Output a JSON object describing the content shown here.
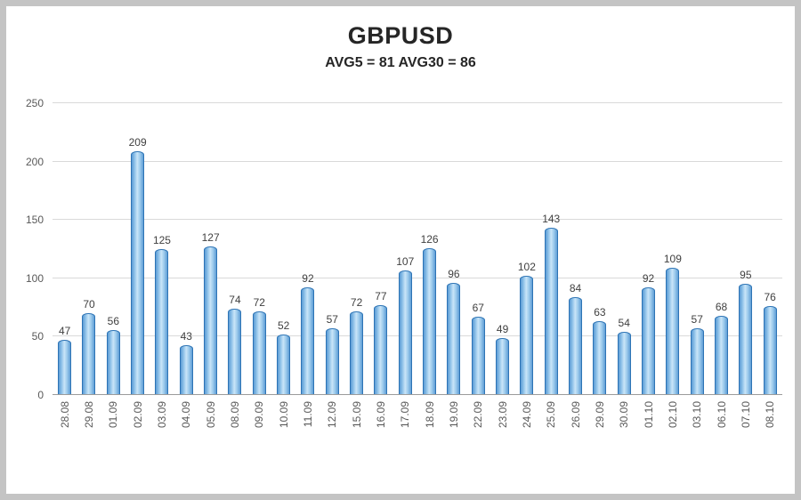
{
  "chart_data": {
    "type": "bar",
    "title": "GBPUSD",
    "subtitle": "AVG5 = 81 AVG30 = 86",
    "avg5": 81,
    "avg30": 86,
    "categories": [
      "28.08",
      "29.08",
      "01.09",
      "02.09",
      "03.09",
      "04.09",
      "05.09",
      "08.09",
      "09.09",
      "10.09",
      "11.09",
      "12.09",
      "15.09",
      "16.09",
      "17.09",
      "18.09",
      "19.09",
      "22.09",
      "23.09",
      "24.09",
      "25.09",
      "26.09",
      "29.09",
      "30.09",
      "01.10",
      "02.10",
      "03.10",
      "06.10",
      "07.10",
      "08.10"
    ],
    "values": [
      47,
      70,
      56,
      209,
      125,
      43,
      127,
      74,
      72,
      52,
      92,
      57,
      72,
      77,
      107,
      126,
      96,
      67,
      49,
      102,
      143,
      84,
      63,
      54,
      92,
      109,
      57,
      68,
      95,
      76
    ],
    "xlabel": "",
    "ylabel": "",
    "ylim": [
      0,
      250
    ],
    "y_ticks": [
      0,
      50,
      100,
      150,
      200,
      250
    ],
    "grid": true,
    "legend": "none",
    "data_labels": true,
    "bar_fill_color": "#9DC3E6",
    "bar_border_color": "#2E74B5",
    "gridline_color": "#D9D9D9",
    "axis_text_color": "#595959",
    "label_text_color": "#404040"
  }
}
